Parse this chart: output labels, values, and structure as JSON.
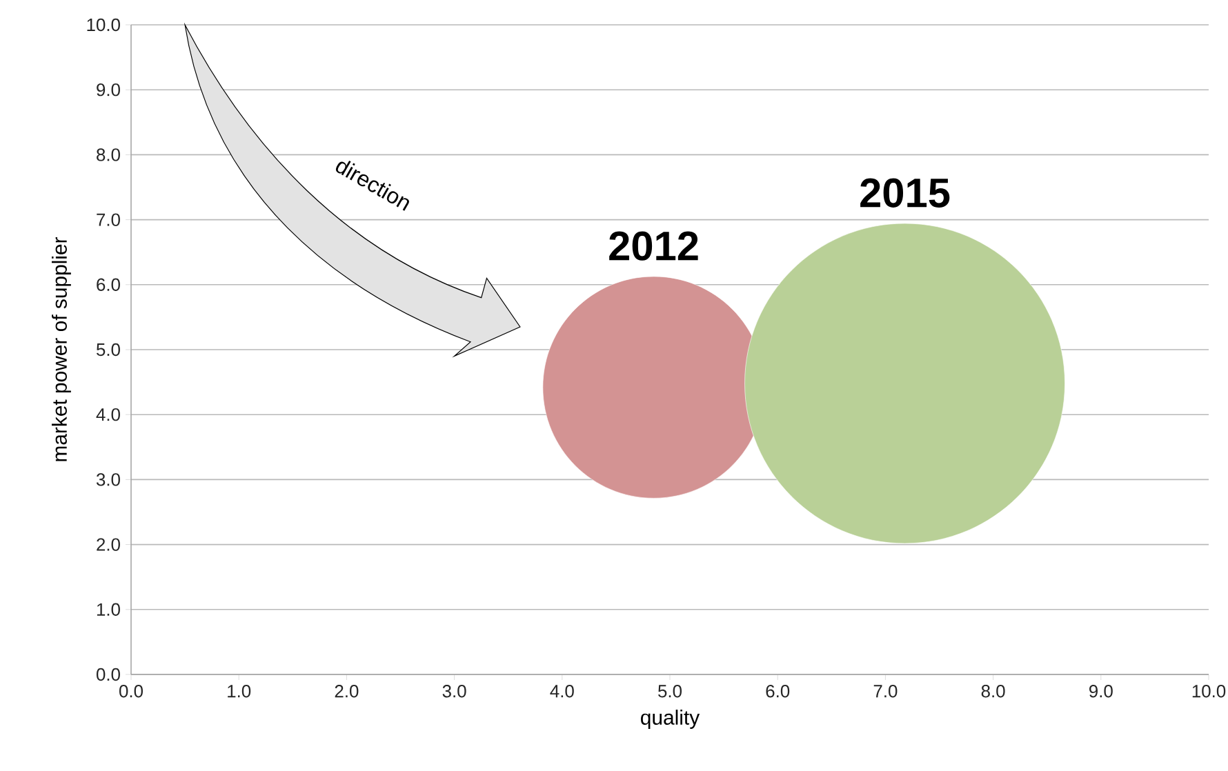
{
  "chart_data": {
    "type": "bubble",
    "xlabel": "quality",
    "ylabel": "market power of supplier",
    "annotations": [
      "direction"
    ],
    "xlim": [
      0,
      10
    ],
    "ylim": [
      0,
      10
    ],
    "xticks": [
      {
        "value": 0,
        "label": "0.0"
      },
      {
        "value": 1,
        "label": "1.0"
      },
      {
        "value": 2,
        "label": "2.0"
      },
      {
        "value": 3,
        "label": "3.0"
      },
      {
        "value": 4,
        "label": "4.0"
      },
      {
        "value": 5,
        "label": "5.0"
      },
      {
        "value": 6,
        "label": "6.0"
      },
      {
        "value": 7,
        "label": "7.0"
      },
      {
        "value": 8,
        "label": "8.0"
      },
      {
        "value": 9,
        "label": "9.0"
      },
      {
        "value": 10,
        "label": "10.0"
      }
    ],
    "yticks": [
      {
        "value": 0,
        "label": "0.0"
      },
      {
        "value": 1,
        "label": "1.0"
      },
      {
        "value": 2,
        "label": "2.0"
      },
      {
        "value": 3,
        "label": "3.0"
      },
      {
        "value": 4,
        "label": "4.0"
      },
      {
        "value": 5,
        "label": "5.0"
      },
      {
        "value": 6,
        "label": "6.0"
      },
      {
        "value": 7,
        "label": "7.0"
      },
      {
        "value": 8,
        "label": "8.0"
      },
      {
        "value": 9,
        "label": "9.0"
      },
      {
        "value": 10,
        "label": "10.0"
      }
    ],
    "grid": "y",
    "series": [
      {
        "name": "2012",
        "color": "#d39393",
        "x": [
          4.85
        ],
        "values": [
          4.42
        ],
        "sizes": [
          0.48
        ]
      },
      {
        "name": "2015",
        "color": "#b9d097",
        "x": [
          7.18
        ],
        "values": [
          4.48
        ],
        "sizes": [
          1
        ]
      }
    ]
  }
}
